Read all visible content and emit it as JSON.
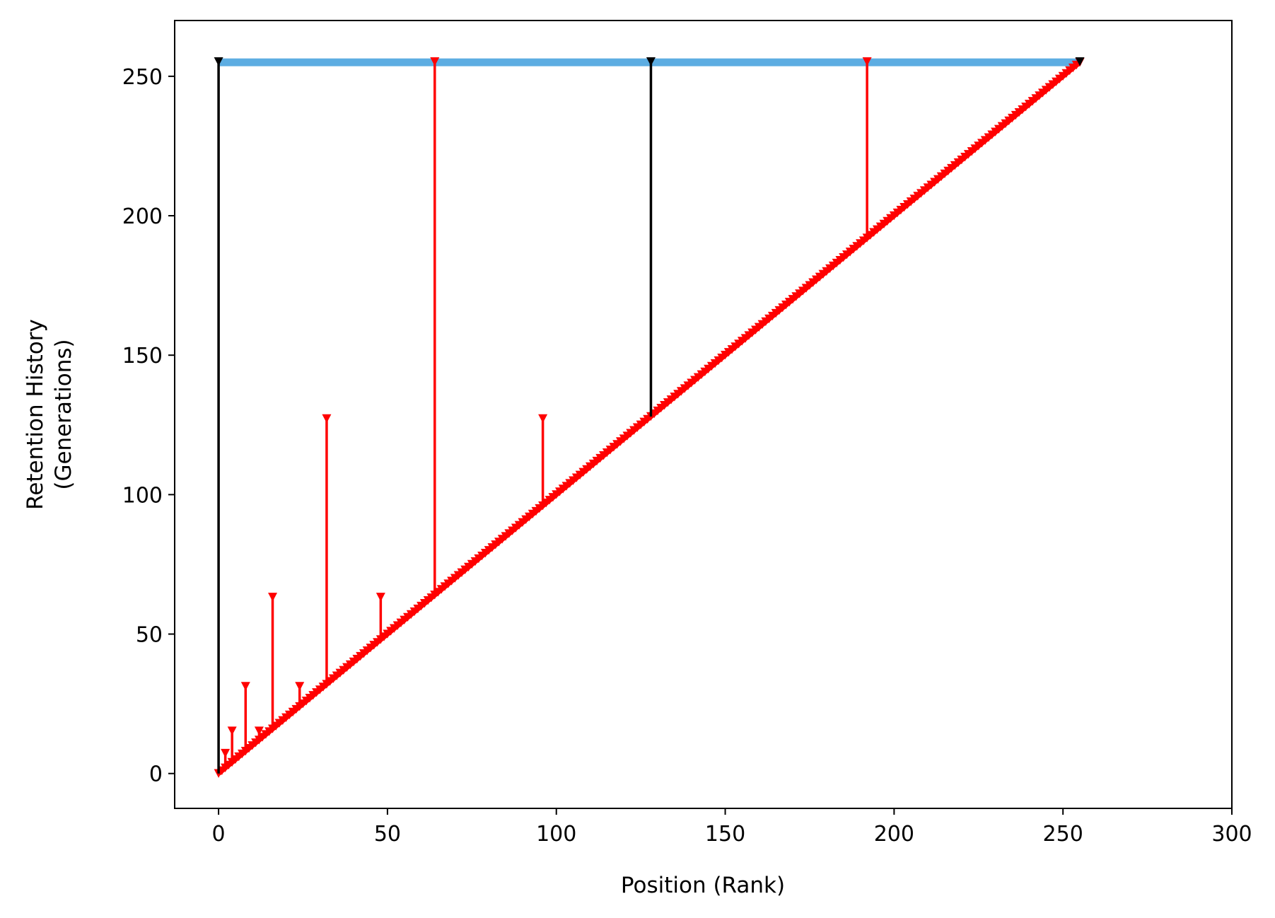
{
  "chart_data": {
    "type": "line",
    "title": "",
    "xlabel": "Position (Rank)",
    "ylabel_lines": [
      "Retention History",
      "(Generations)"
    ],
    "xlim": [
      -13,
      300
    ],
    "ylim": [
      -12.5,
      270
    ],
    "xticks": [
      0,
      50,
      100,
      150,
      200,
      250,
      300
    ],
    "yticks": [
      0,
      50,
      100,
      150,
      200,
      250
    ],
    "grid": false,
    "legend": "none",
    "colors": {
      "band": "#5DADE2",
      "retained": "#FF0000",
      "primary": "#000000",
      "diagonal": "#FF0000"
    },
    "series": [
      {
        "kind": "band",
        "x": [
          0,
          255
        ],
        "y": 255
      },
      {
        "kind": "diagonal-markers",
        "x_start": 0,
        "x_end": 255,
        "marker": "triangle-down"
      },
      {
        "kind": "stems",
        "color_key": "primary",
        "x": [
          0,
          128,
          255
        ],
        "bottom": [
          0,
          128,
          255
        ],
        "top": [
          255,
          255,
          255
        ]
      },
      {
        "kind": "stems",
        "color_key": "retained",
        "x": [
          2,
          4,
          8,
          12,
          16,
          24,
          32,
          48,
          64,
          96,
          192
        ],
        "bottom": [
          2,
          4,
          8,
          12,
          16,
          24,
          32,
          48,
          64,
          96,
          192
        ],
        "top": [
          7,
          15,
          31,
          15,
          63,
          31,
          127,
          63,
          255,
          127,
          255
        ]
      }
    ]
  }
}
